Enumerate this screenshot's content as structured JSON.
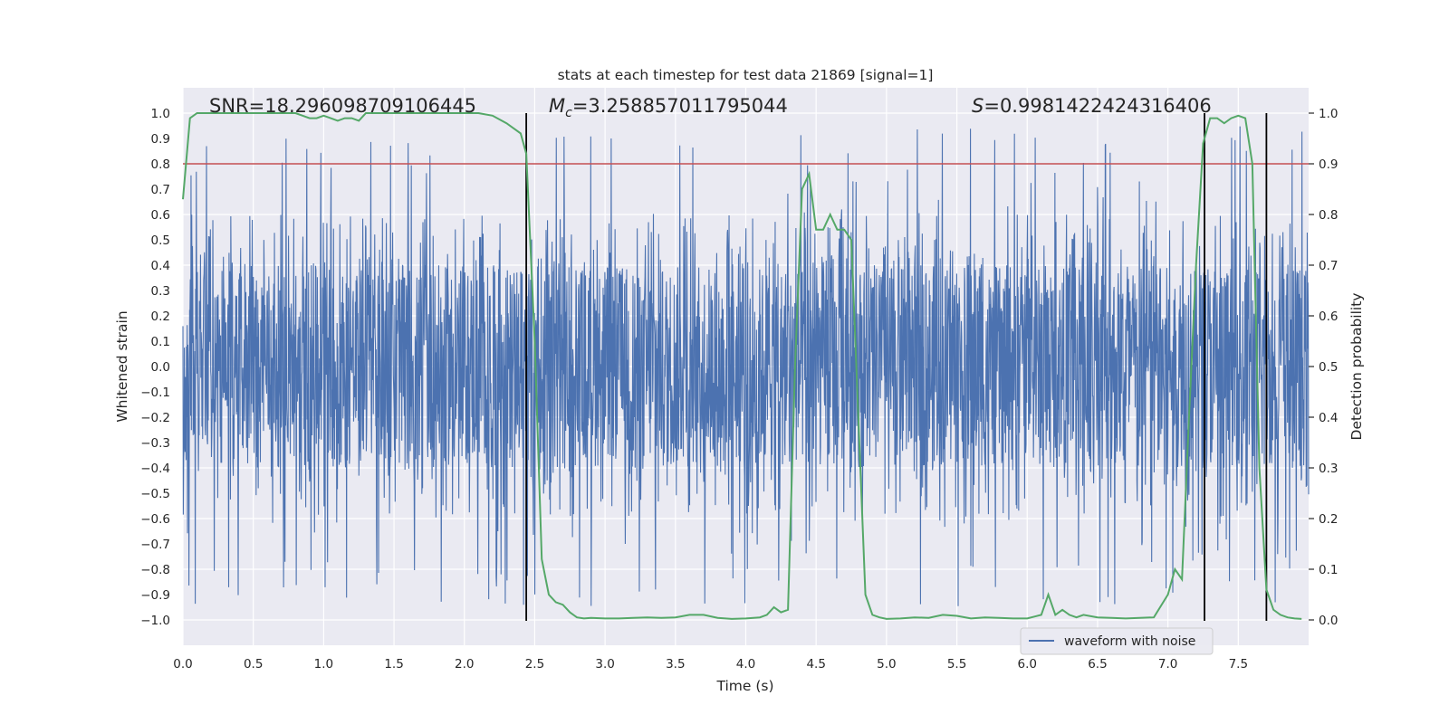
{
  "chart_data": {
    "type": "line",
    "title": "stats at each timestep for test data 21869 [signal=1]",
    "xlabel": "Time (s)",
    "ylabel_left": "Whitened strain",
    "ylabel_right": "Detection probability",
    "xlim": [
      0.0,
      8.0
    ],
    "ylim_left": [
      -1.1,
      1.1
    ],
    "ylim_right": [
      -0.05,
      1.05
    ],
    "x_ticks": [
      "0.0",
      "0.5",
      "1.0",
      "1.5",
      "2.0",
      "2.5",
      "3.0",
      "3.5",
      "4.0",
      "4.5",
      "5.0",
      "5.5",
      "6.0",
      "6.5",
      "7.0",
      "7.5"
    ],
    "x_tick_values": [
      0.0,
      0.5,
      1.0,
      1.5,
      2.0,
      2.5,
      3.0,
      3.5,
      4.0,
      4.5,
      5.0,
      5.5,
      6.0,
      6.5,
      7.0,
      7.5
    ],
    "y_left_ticks": [
      "1.0",
      "0.9",
      "0.8",
      "0.7",
      "0.6",
      "0.5",
      "0.4",
      "0.3",
      "0.2",
      "0.1",
      "0.0",
      "−0.1",
      "−0.2",
      "−0.3",
      "−0.4",
      "−0.5",
      "−0.6",
      "−0.7",
      "−0.8",
      "−0.9",
      "−1.0"
    ],
    "y_left_tick_values": [
      1.0,
      0.9,
      0.8,
      0.7,
      0.6,
      0.5,
      0.4,
      0.3,
      0.2,
      0.1,
      0.0,
      -0.1,
      -0.2,
      -0.3,
      -0.4,
      -0.5,
      -0.6,
      -0.7,
      -0.8,
      -0.9,
      -1.0
    ],
    "y_right_ticks": [
      "1.0",
      "0.9",
      "0.8",
      "0.7",
      "0.6",
      "0.5",
      "0.4",
      "0.3",
      "0.2",
      "0.1",
      "0.0"
    ],
    "y_right_tick_values": [
      1.0,
      0.9,
      0.8,
      0.7,
      0.6,
      0.5,
      0.4,
      0.3,
      0.2,
      0.1,
      0.0
    ],
    "annotations": {
      "snr": "SNR=18.296098709106445",
      "mc_symbol": "M",
      "mc_sub": "c",
      "mc_value": "=3.258857011795044",
      "s_symbol": "S",
      "s_value": "=0.9981422424316406"
    },
    "threshold": {
      "axis": "right",
      "value": 0.9,
      "color": "#c44e52"
    },
    "vertical_lines": [
      2.44,
      7.26,
      7.7
    ],
    "legend": {
      "label": "waveform with noise",
      "position": "lower-right"
    },
    "series": [
      {
        "name": "waveform with noise",
        "axis": "left",
        "color": "#4c72b0",
        "note": "dense noisy whitened strain, envelope roughly ±0.4 with spikes up to ±0.95",
        "envelope": 0.4,
        "peak": 0.95
      },
      {
        "name": "detection probability",
        "axis": "right",
        "color": "#55a868",
        "x": [
          0.0,
          0.05,
          0.1,
          0.2,
          0.3,
          0.4,
          0.5,
          0.6,
          0.7,
          0.8,
          0.9,
          0.95,
          1.0,
          1.05,
          1.1,
          1.15,
          1.2,
          1.25,
          1.3,
          1.4,
          1.5,
          1.6,
          1.7,
          1.8,
          1.9,
          2.0,
          2.1,
          2.2,
          2.3,
          2.4,
          2.44,
          2.5,
          2.55,
          2.6,
          2.65,
          2.7,
          2.75,
          2.8,
          2.85,
          2.9,
          3.0,
          3.1,
          3.2,
          3.3,
          3.4,
          3.5,
          3.6,
          3.7,
          3.8,
          3.9,
          4.0,
          4.1,
          4.15,
          4.2,
          4.25,
          4.3,
          4.35,
          4.4,
          4.45,
          4.5,
          4.55,
          4.6,
          4.65,
          4.7,
          4.75,
          4.8,
          4.85,
          4.9,
          4.95,
          5.0,
          5.1,
          5.2,
          5.3,
          5.4,
          5.5,
          5.6,
          5.7,
          5.8,
          5.9,
          6.0,
          6.1,
          6.15,
          6.2,
          6.25,
          6.3,
          6.35,
          6.4,
          6.5,
          6.6,
          6.7,
          6.8,
          6.9,
          7.0,
          7.05,
          7.1,
          7.15,
          7.2,
          7.25,
          7.3,
          7.35,
          7.4,
          7.45,
          7.5,
          7.55,
          7.6,
          7.65,
          7.7,
          7.75,
          7.8,
          7.85,
          7.9,
          7.95
        ],
        "y": [
          0.83,
          0.99,
          1.0,
          1.0,
          1.0,
          1.0,
          1.0,
          1.0,
          1.0,
          1.0,
          0.99,
          0.99,
          0.995,
          0.99,
          0.985,
          0.99,
          0.99,
          0.985,
          1.0,
          1.0,
          1.0,
          1.0,
          1.0,
          1.0,
          1.0,
          1.0,
          1.0,
          0.995,
          0.98,
          0.96,
          0.92,
          0.55,
          0.12,
          0.05,
          0.035,
          0.03,
          0.015,
          0.005,
          0.003,
          0.004,
          0.003,
          0.003,
          0.004,
          0.005,
          0.004,
          0.005,
          0.01,
          0.01,
          0.004,
          0.002,
          0.003,
          0.005,
          0.01,
          0.025,
          0.015,
          0.02,
          0.5,
          0.85,
          0.88,
          0.77,
          0.77,
          0.8,
          0.77,
          0.77,
          0.75,
          0.4,
          0.05,
          0.01,
          0.005,
          0.002,
          0.003,
          0.005,
          0.004,
          0.01,
          0.008,
          0.003,
          0.005,
          0.004,
          0.003,
          0.003,
          0.01,
          0.05,
          0.01,
          0.02,
          0.01,
          0.005,
          0.01,
          0.005,
          0.004,
          0.003,
          0.004,
          0.005,
          0.05,
          0.1,
          0.08,
          0.4,
          0.7,
          0.94,
          0.99,
          0.99,
          0.98,
          0.99,
          0.995,
          0.99,
          0.9,
          0.3,
          0.06,
          0.02,
          0.01,
          0.005,
          0.003,
          0.002
        ]
      }
    ]
  }
}
